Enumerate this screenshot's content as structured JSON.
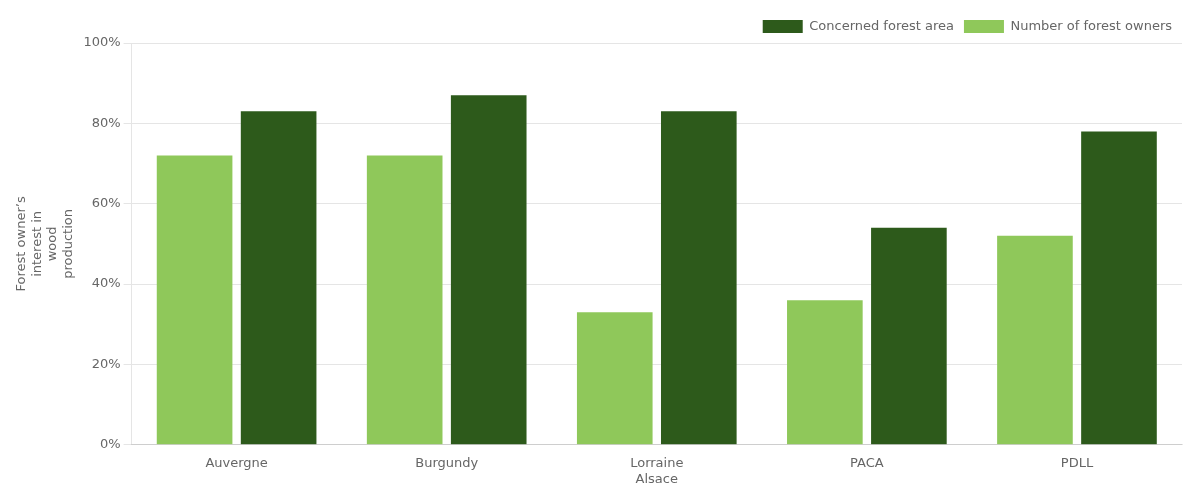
{
  "chart_data": {
    "type": "bar",
    "categories": [
      "Auvergne",
      "Burgundy",
      "Lorraine\nAlsace",
      "PACA",
      "PDLL"
    ],
    "series": [
      {
        "name": "Number of forest owners",
        "color": "#8fc85a",
        "values": [
          0.72,
          0.72,
          0.33,
          0.36,
          0.52
        ]
      },
      {
        "name": "Concerned forest area",
        "color": "#2d5a1b",
        "values": [
          0.83,
          0.87,
          0.83,
          0.54,
          0.78
        ]
      }
    ],
    "ylabel": "Forest owner’s\ninterest in\nwood\nproduction",
    "ylim": [
      0,
      1.0
    ],
    "yticks": [
      {
        "value": 0,
        "label": "0%"
      },
      {
        "value": 0.2,
        "label": "20%"
      },
      {
        "value": 0.4,
        "label": "40%"
      },
      {
        "value": 0.6,
        "label": "60%"
      },
      {
        "value": 0.8,
        "label": "80%"
      },
      {
        "value": 1.0,
        "label": "100%"
      }
    ],
    "grid": true,
    "legend": "upper right"
  }
}
